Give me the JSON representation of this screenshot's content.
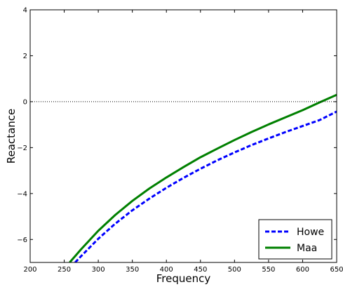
{
  "chart_data": {
    "type": "line",
    "title": "",
    "xlabel": "Frequency",
    "ylabel": "Reactance",
    "xlim": [
      200,
      650
    ],
    "ylim": [
      -7,
      4
    ],
    "xticks": [
      200,
      250,
      300,
      350,
      400,
      450,
      500,
      550,
      600,
      650
    ],
    "yticks": [
      -6,
      -4,
      -2,
      0,
      2,
      4
    ],
    "grid": false,
    "reference_line": {
      "y": 0,
      "style": "dotted",
      "color": "#000000"
    },
    "legend": {
      "placement": "bottom-right"
    },
    "series": [
      {
        "name": "Howe",
        "color": "#0000ff",
        "style": "dashed",
        "x": [
          266,
          275,
          300,
          325,
          350,
          375,
          400,
          425,
          450,
          475,
          500,
          525,
          550,
          575,
          600,
          625,
          650
        ],
        "y": [
          -7.0,
          -6.72,
          -5.97,
          -5.31,
          -4.73,
          -4.22,
          -3.75,
          -3.32,
          -2.92,
          -2.55,
          -2.21,
          -1.89,
          -1.6,
          -1.32,
          -1.06,
          -0.8,
          -0.43
        ]
      },
      {
        "name": "Maa",
        "color": "#008000",
        "style": "solid",
        "x": [
          258,
          275,
          300,
          325,
          350,
          375,
          400,
          425,
          450,
          475,
          500,
          525,
          550,
          575,
          600,
          625,
          650
        ],
        "y": [
          -7.0,
          -6.42,
          -5.62,
          -4.93,
          -4.32,
          -3.78,
          -3.3,
          -2.85,
          -2.42,
          -2.04,
          -1.67,
          -1.32,
          -0.99,
          -0.68,
          -0.37,
          -0.03,
          0.3
        ]
      }
    ]
  }
}
